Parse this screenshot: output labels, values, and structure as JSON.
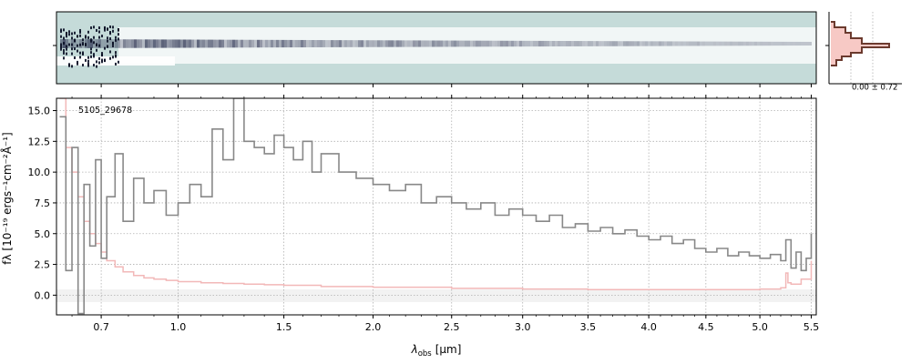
{
  "colors": {
    "spec_bg": "#c5dbd9",
    "spec_ink": "#2b3150",
    "flux_line": "#888888",
    "err_line": "#f2b8b8",
    "err_fill": "#f7c9c5",
    "profile_line": "#6b3a2e",
    "grid": "#b0b0b0"
  },
  "side_panel": {
    "label": "0.00 ± 0.72"
  },
  "chart_data": {
    "type": "line",
    "object_label": "5105_29678",
    "xlabel": "λobs [μm]",
    "xlabel_main": "λ",
    "xlabel_sub": "obs",
    "xlabel_unit": "[μm]",
    "ylabel": "fλ [10⁻¹⁹ ergs⁻¹cm⁻²Å⁻¹]",
    "xscale": "sqrt",
    "xlim": [
      0.55,
      5.55
    ],
    "ylim": [
      -1.6,
      16.0
    ],
    "x_ticks": [
      0.7,
      1.0,
      1.5,
      2.0,
      2.5,
      3.0,
      3.5,
      4.0,
      4.5,
      5.0,
      5.5
    ],
    "x_tick_labels": [
      "0.7",
      "1.0",
      "1.5",
      "2.0",
      "2.5",
      "3.0",
      "3.5",
      "4.0",
      "4.5",
      "5.0",
      "5.5"
    ],
    "y_ticks": [
      0.0,
      2.5,
      5.0,
      7.5,
      10.0,
      12.5,
      15.0
    ],
    "y_tick_labels": [
      "0.0",
      "2.5",
      "5.0",
      "7.5",
      "10.0",
      "12.5",
      "15.0"
    ],
    "grid": true,
    "series": [
      {
        "key": "flux",
        "color": "#888888",
        "x": [
          0.56,
          0.58,
          0.6,
          0.62,
          0.64,
          0.66,
          0.68,
          0.7,
          0.72,
          0.75,
          0.78,
          0.82,
          0.86,
          0.9,
          0.95,
          1.0,
          1.05,
          1.1,
          1.15,
          1.2,
          1.25,
          1.3,
          1.35,
          1.4,
          1.45,
          1.5,
          1.55,
          1.6,
          1.65,
          1.7,
          1.8,
          1.9,
          2.0,
          2.1,
          2.2,
          2.3,
          2.4,
          2.5,
          2.6,
          2.7,
          2.8,
          2.9,
          3.0,
          3.1,
          3.2,
          3.3,
          3.4,
          3.5,
          3.6,
          3.7,
          3.8,
          3.9,
          4.0,
          4.1,
          4.2,
          4.3,
          4.4,
          4.5,
          4.6,
          4.7,
          4.8,
          4.9,
          5.0,
          5.1,
          5.2,
          5.25,
          5.3,
          5.35,
          5.4,
          5.45,
          5.5
        ],
        "y": [
          14.5,
          2.0,
          12.0,
          -1.5,
          9.0,
          4.0,
          11.0,
          3.0,
          8.0,
          11.5,
          6.0,
          9.5,
          7.5,
          8.5,
          6.5,
          7.5,
          9.0,
          8.0,
          13.5,
          11.0,
          16.0,
          12.5,
          12.0,
          11.5,
          13.0,
          12.0,
          11.0,
          12.5,
          10.0,
          11.5,
          10.0,
          9.5,
          9.0,
          8.5,
          9.0,
          7.5,
          8.0,
          7.5,
          7.0,
          7.5,
          6.5,
          7.0,
          6.5,
          6.0,
          6.5,
          5.5,
          5.8,
          5.2,
          5.5,
          5.0,
          5.3,
          4.8,
          4.5,
          4.8,
          4.2,
          4.5,
          3.8,
          3.5,
          3.8,
          3.2,
          3.5,
          3.2,
          3.0,
          3.3,
          2.8,
          4.5,
          2.2,
          3.5,
          2.0,
          3.0,
          5.0
        ]
      },
      {
        "key": "error",
        "color": "#f2b8b8",
        "x": [
          0.56,
          0.58,
          0.6,
          0.62,
          0.64,
          0.66,
          0.68,
          0.7,
          0.72,
          0.75,
          0.78,
          0.82,
          0.86,
          0.9,
          0.95,
          1.0,
          1.1,
          1.2,
          1.3,
          1.4,
          1.5,
          1.7,
          2.0,
          2.5,
          3.0,
          3.5,
          4.0,
          4.5,
          5.0,
          5.2,
          5.25,
          5.27,
          5.3,
          5.4,
          5.5
        ],
        "y": [
          16.0,
          12.0,
          10.0,
          8.0,
          6.0,
          5.0,
          4.2,
          3.5,
          2.8,
          2.3,
          1.9,
          1.6,
          1.4,
          1.3,
          1.2,
          1.1,
          1.0,
          0.95,
          0.9,
          0.85,
          0.8,
          0.7,
          0.65,
          0.55,
          0.5,
          0.45,
          0.45,
          0.45,
          0.5,
          0.6,
          1.8,
          1.0,
          0.9,
          1.3,
          2.8
        ]
      }
    ]
  }
}
